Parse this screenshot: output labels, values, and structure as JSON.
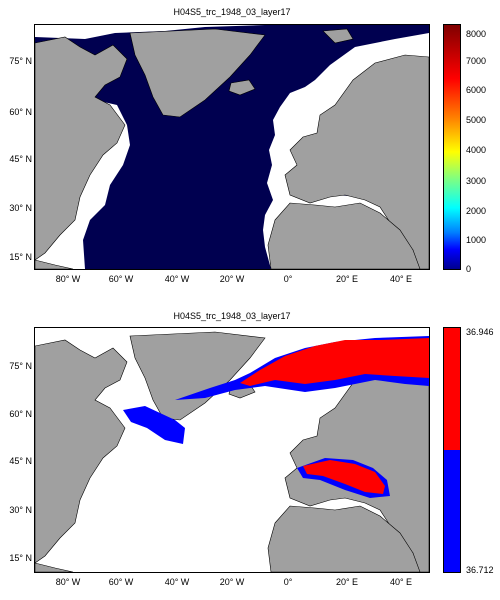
{
  "colors": {
    "land": "#a0a0a0",
    "coast": "#000000",
    "ocean_background": "#ffffff",
    "low_value": "#000050",
    "binary_low": "#0000ff",
    "binary_high": "#ff0000"
  },
  "axes": {
    "x_ticks": [
      "80° W",
      "60° W",
      "40° W",
      "20° W",
      "0°",
      "20° E",
      "40° E"
    ],
    "y_ticks": [
      "75° N",
      "60° N",
      "45° N",
      "30° N",
      "15° N"
    ]
  },
  "panels": [
    {
      "title": "H04S5_trc_1948_03_layer17",
      "colorbar_type": "jet",
      "colorbar_ticks": [
        "8000",
        "7000",
        "6000",
        "5000",
        "4000",
        "3000",
        "2000",
        "1000",
        "0"
      ]
    },
    {
      "title": "H04S5_trc_1948_03_layer17",
      "colorbar_type": "binary",
      "colorbar_ticks": [
        "36.946",
        "36.712"
      ]
    }
  ]
}
